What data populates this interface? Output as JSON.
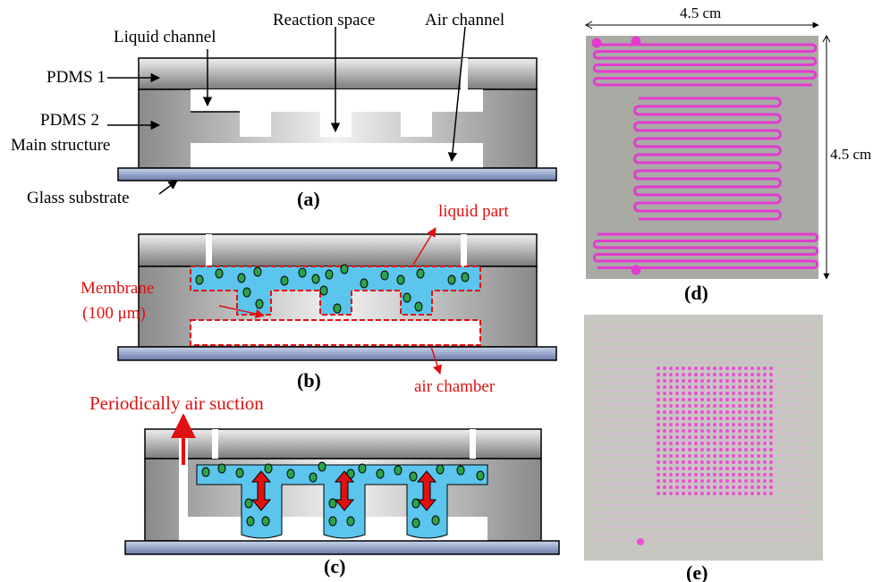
{
  "panel_a": {
    "liquid_channel": "Liquid channel",
    "reaction_space": "Reaction space",
    "air_channel": "Air channel",
    "pdms1": "PDMS 1",
    "pdms2": "PDMS 2",
    "main_structure": "Main structure",
    "glass_substrate": "Glass substrate",
    "label": "(a)"
  },
  "panel_b": {
    "liquid_part": "liquid part",
    "membrane": "Membrane",
    "membrane_thickness": "(100 μm)",
    "air_chamber": "air chamber",
    "label": "(b)"
  },
  "panel_c": {
    "air_suction": "Periodically air suction",
    "label": "(c)"
  },
  "panel_d": {
    "width": "4.5 cm",
    "height": "4.5 cm",
    "label": "(d)"
  },
  "panel_e": {
    "label": "(e)"
  }
}
